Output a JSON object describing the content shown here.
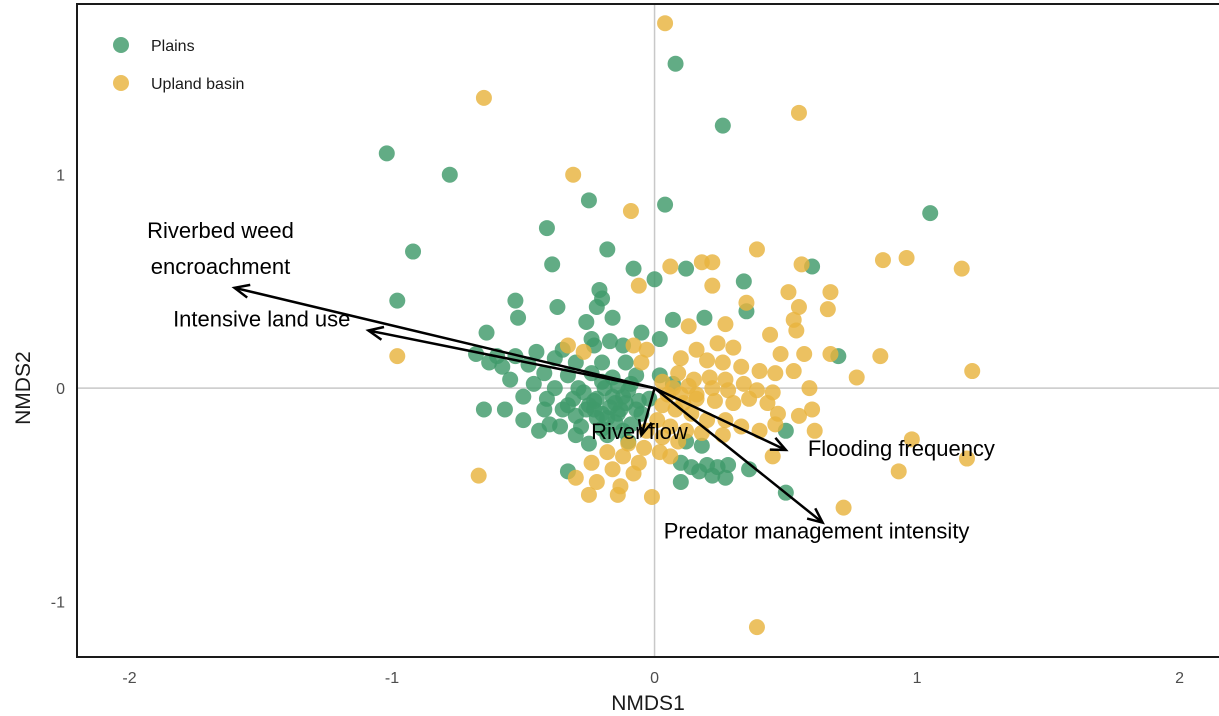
{
  "chart_data": {
    "type": "scatter",
    "xlabel": "NMDS1",
    "ylabel": "NMDS2",
    "xlim": [
      -2.2,
      2.15
    ],
    "ylim": [
      -1.26,
      1.8
    ],
    "xticks": [
      -2,
      -1,
      0,
      1,
      2
    ],
    "yticks": [
      -1,
      0,
      1
    ],
    "grid": "zero lines only",
    "legend_position": "top-left",
    "series": [
      {
        "name": "Plains",
        "color": "#3f9a6a",
        "points": [
          [
            0.08,
            1.52
          ],
          [
            0.26,
            1.23
          ],
          [
            0.04,
            0.86
          ],
          [
            1.05,
            0.82
          ],
          [
            -1.02,
            1.1
          ],
          [
            -0.78,
            1.0
          ],
          [
            -0.25,
            0.88
          ],
          [
            -0.41,
            0.75
          ],
          [
            -0.92,
            0.64
          ],
          [
            -0.18,
            0.65
          ],
          [
            -0.39,
            0.58
          ],
          [
            -0.08,
            0.56
          ],
          [
            0.12,
            0.56
          ],
          [
            0.6,
            0.57
          ],
          [
            0.0,
            0.51
          ],
          [
            -0.98,
            0.41
          ],
          [
            -0.53,
            0.41
          ],
          [
            -0.21,
            0.46
          ],
          [
            -0.37,
            0.38
          ],
          [
            -0.52,
            0.33
          ],
          [
            -0.2,
            0.42
          ],
          [
            -0.22,
            0.38
          ],
          [
            -0.16,
            0.33
          ],
          [
            0.19,
            0.33
          ],
          [
            0.35,
            0.36
          ],
          [
            0.34,
            0.5
          ],
          [
            0.02,
            0.23
          ],
          [
            0.07,
            0.32
          ],
          [
            -0.26,
            0.31
          ],
          [
            -0.05,
            0.26
          ],
          [
            -0.12,
            0.2
          ],
          [
            -0.64,
            0.26
          ],
          [
            -0.24,
            0.23
          ],
          [
            -0.17,
            0.22
          ],
          [
            -0.23,
            0.2
          ],
          [
            -0.35,
            0.18
          ],
          [
            -0.45,
            0.17
          ],
          [
            -0.68,
            0.16
          ],
          [
            -0.53,
            0.15
          ],
          [
            -0.6,
            0.15
          ],
          [
            -0.38,
            0.14
          ],
          [
            -0.3,
            0.12
          ],
          [
            -0.2,
            0.12
          ],
          [
            -0.11,
            0.12
          ],
          [
            -0.63,
            0.12
          ],
          [
            -0.58,
            0.1
          ],
          [
            -0.48,
            0.11
          ],
          [
            -0.42,
            0.07
          ],
          [
            -0.33,
            0.06
          ],
          [
            -0.24,
            0.07
          ],
          [
            -0.16,
            0.05
          ],
          [
            -0.07,
            0.06
          ],
          [
            0.02,
            0.06
          ],
          [
            -0.55,
            0.04
          ],
          [
            -0.46,
            0.02
          ],
          [
            -0.38,
            0.0
          ],
          [
            -0.29,
            0.0
          ],
          [
            -0.19,
            0.0
          ],
          [
            -0.1,
            -0.01
          ],
          [
            0.07,
            0.02
          ],
          [
            -0.5,
            -0.04
          ],
          [
            -0.41,
            -0.05
          ],
          [
            -0.31,
            -0.05
          ],
          [
            -0.23,
            -0.06
          ],
          [
            -0.15,
            -0.07
          ],
          [
            -0.06,
            -0.06
          ],
          [
            -0.35,
            -0.1
          ],
          [
            -0.26,
            -0.1
          ],
          [
            -0.2,
            -0.12
          ],
          [
            -0.13,
            -0.1
          ],
          [
            -0.05,
            -0.12
          ],
          [
            -0.3,
            -0.13
          ],
          [
            -0.22,
            -0.14
          ],
          [
            -0.15,
            -0.16
          ],
          [
            -0.09,
            -0.17
          ],
          [
            -0.36,
            -0.18
          ],
          [
            -0.28,
            -0.18
          ],
          [
            -0.2,
            -0.19
          ],
          [
            -0.65,
            -0.1
          ],
          [
            -0.5,
            -0.15
          ],
          [
            -0.44,
            -0.2
          ],
          [
            -0.4,
            -0.17
          ],
          [
            -0.3,
            -0.22
          ],
          [
            -0.18,
            -0.22
          ],
          [
            -0.12,
            -0.2
          ],
          [
            -0.25,
            -0.26
          ],
          [
            -0.1,
            -0.25
          ],
          [
            -0.42,
            -0.1
          ],
          [
            -0.57,
            -0.1
          ],
          [
            0.5,
            -0.2
          ],
          [
            0.12,
            -0.25
          ],
          [
            0.18,
            -0.27
          ],
          [
            0.1,
            -0.35
          ],
          [
            0.14,
            -0.37
          ],
          [
            0.2,
            -0.36
          ],
          [
            0.24,
            -0.37
          ],
          [
            0.28,
            -0.36
          ],
          [
            0.36,
            -0.38
          ],
          [
            0.22,
            -0.41
          ],
          [
            0.17,
            -0.39
          ],
          [
            0.27,
            -0.42
          ],
          [
            0.1,
            -0.44
          ],
          [
            0.5,
            -0.49
          ],
          [
            0.7,
            0.15
          ],
          [
            -0.33,
            -0.39
          ],
          [
            -0.22,
            -0.05
          ],
          [
            -0.17,
            -0.09
          ],
          [
            -0.12,
            -0.04
          ],
          [
            -0.27,
            -0.02
          ],
          [
            -0.2,
            0.03
          ],
          [
            -0.14,
            0.01
          ],
          [
            -0.09,
            0.02
          ],
          [
            -0.25,
            -0.08
          ],
          [
            -0.18,
            -0.14
          ],
          [
            -0.23,
            -0.1
          ],
          [
            -0.07,
            -0.1
          ],
          [
            -0.02,
            -0.05
          ],
          [
            -0.33,
            -0.08
          ],
          [
            -0.14,
            -0.12
          ],
          [
            -0.11,
            -0.07
          ],
          [
            -0.16,
            -0.04
          ]
        ]
      },
      {
        "name": "Upland basin",
        "color": "#e8b33e",
        "points": [
          [
            0.04,
            1.71
          ],
          [
            -0.65,
            1.36
          ],
          [
            0.55,
            1.29
          ],
          [
            -0.31,
            1.0
          ],
          [
            -0.09,
            0.83
          ],
          [
            0.39,
            0.65
          ],
          [
            0.06,
            0.57
          ],
          [
            0.18,
            0.59
          ],
          [
            0.22,
            0.59
          ],
          [
            0.56,
            0.58
          ],
          [
            0.87,
            0.6
          ],
          [
            0.96,
            0.61
          ],
          [
            1.17,
            0.56
          ],
          [
            0.22,
            0.48
          ],
          [
            -0.06,
            0.48
          ],
          [
            0.35,
            0.4
          ],
          [
            0.51,
            0.45
          ],
          [
            0.55,
            0.38
          ],
          [
            0.67,
            0.45
          ],
          [
            0.66,
            0.37
          ],
          [
            0.13,
            0.29
          ],
          [
            0.27,
            0.3
          ],
          [
            0.53,
            0.32
          ],
          [
            0.44,
            0.25
          ],
          [
            0.54,
            0.27
          ],
          [
            0.24,
            0.21
          ],
          [
            0.16,
            0.18
          ],
          [
            0.3,
            0.19
          ],
          [
            0.48,
            0.16
          ],
          [
            0.57,
            0.16
          ],
          [
            0.67,
            0.16
          ],
          [
            0.86,
            0.15
          ],
          [
            0.77,
            0.05
          ],
          [
            1.21,
            0.08
          ],
          [
            0.59,
            0.0
          ],
          [
            -0.98,
            0.15
          ],
          [
            -0.08,
            0.2
          ],
          [
            -0.03,
            0.18
          ],
          [
            0.1,
            0.14
          ],
          [
            0.2,
            0.13
          ],
          [
            0.26,
            0.12
          ],
          [
            0.33,
            0.1
          ],
          [
            0.4,
            0.08
          ],
          [
            0.46,
            0.07
          ],
          [
            0.53,
            0.08
          ],
          [
            0.09,
            0.07
          ],
          [
            0.15,
            0.04
          ],
          [
            0.21,
            0.05
          ],
          [
            0.27,
            0.04
          ],
          [
            0.34,
            0.02
          ],
          [
            0.39,
            -0.01
          ],
          [
            0.45,
            -0.02
          ],
          [
            0.1,
            -0.03
          ],
          [
            0.16,
            -0.05
          ],
          [
            0.23,
            -0.06
          ],
          [
            0.3,
            -0.07
          ],
          [
            0.36,
            -0.05
          ],
          [
            0.43,
            -0.07
          ],
          [
            0.47,
            -0.12
          ],
          [
            0.55,
            -0.13
          ],
          [
            0.6,
            -0.1
          ],
          [
            0.46,
            -0.17
          ],
          [
            0.4,
            -0.2
          ],
          [
            0.03,
            -0.08
          ],
          [
            0.08,
            -0.1
          ],
          [
            0.14,
            -0.12
          ],
          [
            0.2,
            -0.15
          ],
          [
            0.27,
            -0.15
          ],
          [
            0.33,
            -0.18
          ],
          [
            0.01,
            -0.15
          ],
          [
            0.06,
            -0.18
          ],
          [
            0.12,
            -0.2
          ],
          [
            0.18,
            -0.21
          ],
          [
            0.26,
            -0.22
          ],
          [
            -0.03,
            -0.2
          ],
          [
            0.03,
            -0.23
          ],
          [
            0.09,
            -0.25
          ],
          [
            -0.1,
            -0.26
          ],
          [
            -0.04,
            -0.28
          ],
          [
            0.02,
            -0.3
          ],
          [
            0.06,
            -0.32
          ],
          [
            -0.18,
            -0.3
          ],
          [
            -0.12,
            -0.32
          ],
          [
            -0.06,
            -0.35
          ],
          [
            -0.24,
            -0.35
          ],
          [
            -0.16,
            -0.38
          ],
          [
            -0.08,
            -0.4
          ],
          [
            -0.3,
            -0.42
          ],
          [
            -0.22,
            -0.44
          ],
          [
            -0.13,
            -0.46
          ],
          [
            -0.25,
            -0.5
          ],
          [
            -0.14,
            -0.5
          ],
          [
            -0.01,
            -0.51
          ],
          [
            -0.67,
            -0.41
          ],
          [
            0.72,
            -0.56
          ],
          [
            0.98,
            -0.24
          ],
          [
            0.93,
            -0.39
          ],
          [
            1.19,
            -0.33
          ],
          [
            0.39,
            -1.12
          ],
          [
            0.61,
            -0.2
          ],
          [
            0.45,
            -0.32
          ],
          [
            0.11,
            -0.07
          ],
          [
            0.16,
            -0.03
          ],
          [
            0.22,
            0.0
          ],
          [
            0.28,
            -0.01
          ],
          [
            0.03,
            0.03
          ],
          [
            0.07,
            0.0
          ],
          [
            0.13,
            0.01
          ],
          [
            0.05,
            -0.03
          ],
          [
            -0.27,
            0.17
          ],
          [
            -0.33,
            0.2
          ],
          [
            -0.05,
            0.12
          ]
        ]
      }
    ],
    "vectors": [
      {
        "label": "Riverbed weed encroachment",
        "label_lines": [
          "Riverbed weed",
          "encroachment"
        ],
        "x": -1.6,
        "y": 0.47
      },
      {
        "label": "Intensive land use",
        "label_lines": [
          "Intensive land use"
        ],
        "x": -1.09,
        "y": 0.27
      },
      {
        "label": "River flow",
        "label_lines": [
          "River flow"
        ],
        "x": -0.05,
        "y": -0.22
      },
      {
        "label": "Flooding frequency",
        "label_lines": [
          "Flooding frequency"
        ],
        "x": 0.5,
        "y": -0.29
      },
      {
        "label": "Predator management intensity",
        "label_lines": [
          "Predator management intensity"
        ],
        "x": 0.64,
        "y": -0.63
      }
    ]
  }
}
